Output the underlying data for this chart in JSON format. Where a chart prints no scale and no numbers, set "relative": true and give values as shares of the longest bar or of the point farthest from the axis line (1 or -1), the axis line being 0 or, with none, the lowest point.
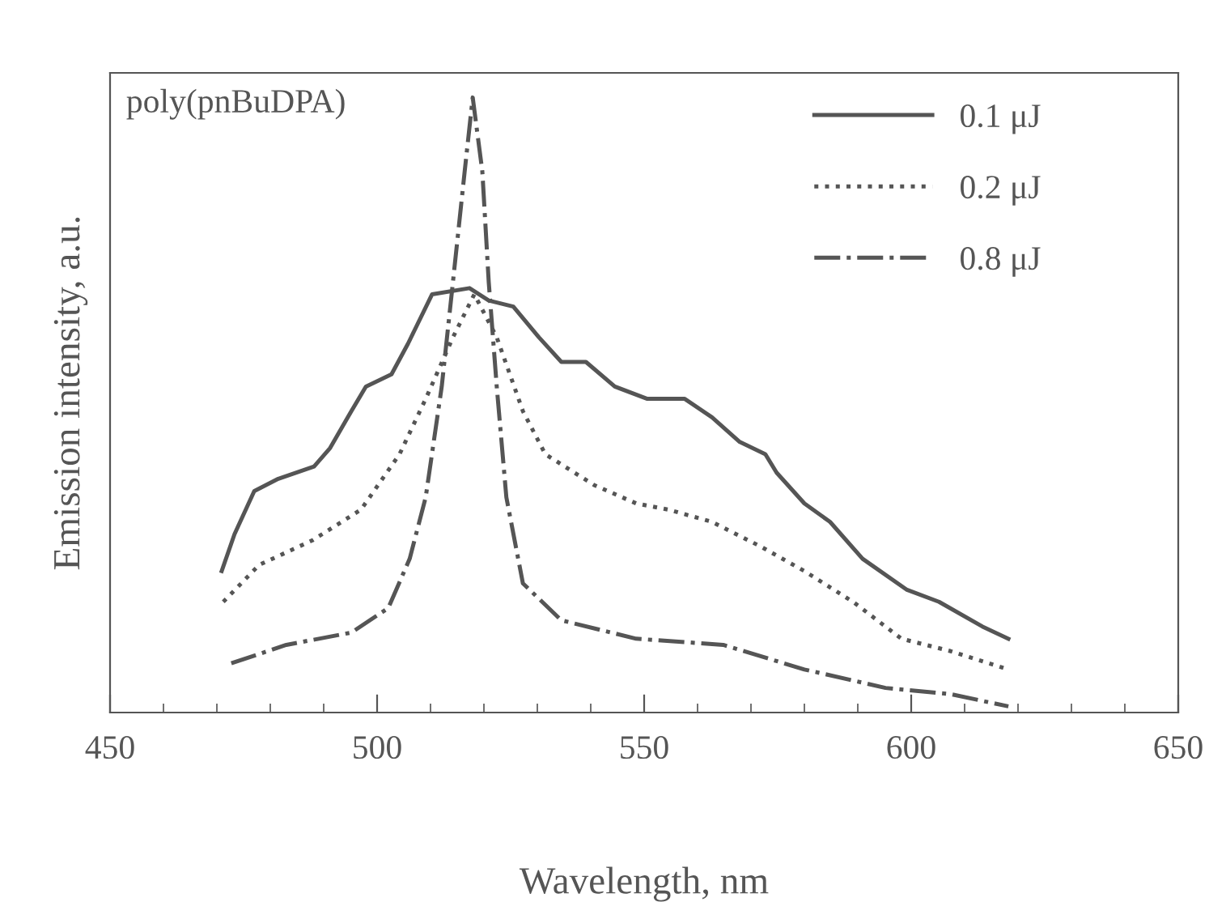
{
  "chart_data": {
    "type": "line",
    "relative": true,
    "xlabel": "Wavelength, nm",
    "ylabel": "Emission intensity, a.u.",
    "annotations": [
      "poly(pnBuDPA)"
    ],
    "xlim": [
      450,
      650
    ],
    "xticks": [
      450,
      500,
      550,
      600,
      650
    ],
    "grid": false,
    "legend": "top right",
    "tick_labels": "x",
    "series": [
      {
        "name": "0.1 μJ",
        "color": "#555555",
        "line_style": "solid",
        "x": [
          470.9,
          473.3,
          477.0,
          481.5,
          488.2,
          491.2,
          494.5,
          497.9,
          502.7,
          505.8,
          510.3,
          517.3,
          520.9,
          525.5,
          530.3,
          534.5,
          539.1,
          544.5,
          550.6,
          557.6,
          562.7,
          567.9,
          572.7,
          574.8,
          580.0,
          584.8,
          590.9,
          599.1,
          605.2,
          613.3,
          618.2
        ],
        "values": [
          0.23,
          0.29,
          0.36,
          0.38,
          0.4,
          0.43,
          0.48,
          0.53,
          0.55,
          0.6,
          0.68,
          0.69,
          0.67,
          0.66,
          0.61,
          0.57,
          0.57,
          0.53,
          0.51,
          0.51,
          0.48,
          0.44,
          0.42,
          0.39,
          0.34,
          0.31,
          0.25,
          0.2,
          0.18,
          0.14,
          0.12
        ]
      },
      {
        "name": "0.2 μJ",
        "color": "#555555",
        "line_style": "dotted",
        "x": [
          471.2,
          477.9,
          487.9,
          497.0,
          504.2,
          509.1,
          514.2,
          518.2,
          522.4,
          527.3,
          531.5,
          540.6,
          548.5,
          554.5,
          562.7,
          571.8,
          580.0,
          589.1,
          598.2,
          607.3,
          618.2
        ],
        "values": [
          0.18,
          0.24,
          0.28,
          0.33,
          0.42,
          0.51,
          0.61,
          0.68,
          0.61,
          0.49,
          0.42,
          0.37,
          0.34,
          0.33,
          0.31,
          0.27,
          0.23,
          0.18,
          0.12,
          0.1,
          0.07
        ]
      },
      {
        "name": "0.8 μJ",
        "color": "#555555",
        "line_style": "dashdot",
        "x": [
          472.7,
          483.0,
          495.2,
          502.1,
          506.1,
          509.1,
          512.1,
          514.2,
          516.4,
          517.9,
          519.7,
          520.9,
          522.4,
          524.2,
          527.3,
          534.5,
          548.5,
          564.8,
          580.0,
          595.2,
          607.3,
          618.2
        ],
        "values": [
          0.08,
          0.11,
          0.13,
          0.17,
          0.25,
          0.35,
          0.53,
          0.7,
          0.88,
          1.0,
          0.88,
          0.7,
          0.53,
          0.35,
          0.21,
          0.15,
          0.12,
          0.11,
          0.07,
          0.04,
          0.03,
          0.01
        ]
      }
    ]
  }
}
